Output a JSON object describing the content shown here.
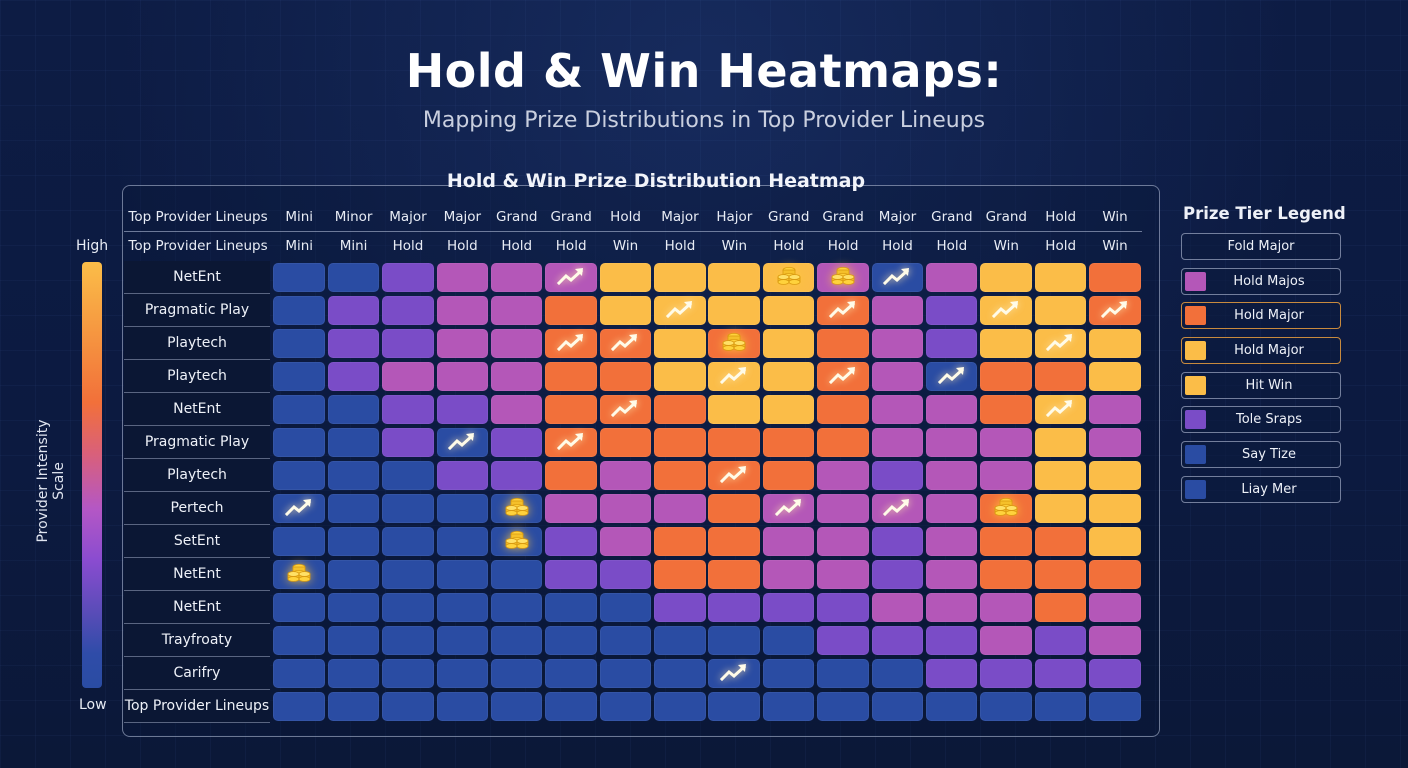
{
  "header": {
    "title": "Hold & Win Heatmaps:",
    "subtitle": "Mapping Prize Distributions in Top Provider Lineups"
  },
  "scale": {
    "label": "Provider Intensity Scale",
    "high": "High",
    "low": "Low"
  },
  "legend": {
    "title": "Prize Tier Legend",
    "items": [
      {
        "label": "Fold Major",
        "swatch": null,
        "highlight": false
      },
      {
        "label": "Hold Majos",
        "swatch": "#b457b8",
        "highlight": false
      },
      {
        "label": "Hold Major",
        "swatch": "#f2703a",
        "highlight": true
      },
      {
        "label": "Hold Major",
        "swatch": "#fbbd48",
        "highlight": true
      },
      {
        "label": "Hit Win",
        "swatch": "#fbbd48",
        "highlight": false
      },
      {
        "label": "Tole Sraps",
        "swatch": "#7a4cc7",
        "highlight": false
      },
      {
        "label": "Say Tize",
        "swatch": "#2a4ca3",
        "highlight": false
      },
      {
        "label": "Liay Mer",
        "swatch": "#2a4ca3",
        "highlight": false
      }
    ]
  },
  "palette": {
    "B": "#2a4ca3",
    "V": "#7a4cc7",
    "P": "#b457b8",
    "O": "#f2703a",
    "Y": "#fbbd48"
  },
  "chart_data": {
    "type": "heatmap",
    "title": "Hold & Win Prize Distribution Heatmap",
    "header_row_1": {
      "label": "Top Provider Lineups",
      "columns": [
        "Mini",
        "Minor",
        "Major",
        "Major",
        "Grand",
        "Grand",
        "Hold",
        "Major",
        "Hajor",
        "Grand",
        "Grand",
        "Major",
        "Grand",
        "Grand",
        "Hold",
        "Win"
      ]
    },
    "header_row_2": {
      "label": "Top Provider Lineups",
      "columns": [
        "Mini",
        "Mini",
        "Hold",
        "Hold",
        "Hold",
        "Hold",
        "Win",
        "Hold",
        "Win",
        "Hold",
        "Hold",
        "Hold",
        "Hold",
        "Win",
        "Hold",
        "Win"
      ]
    },
    "color_scale": {
      "low": "#2a4ca3",
      "high": "#fbbd48",
      "label": "Provider Intensity Scale"
    },
    "value_key": {
      "B": 1,
      "V": 2,
      "P": 3,
      "O": 4,
      "Y": 5
    },
    "rows": [
      {
        "provider": "NetEnt",
        "cells": [
          "B",
          "B",
          "V",
          "P",
          "P",
          "P",
          "Y",
          "Y",
          "Y",
          "Y",
          "P",
          "B",
          "P",
          "Y",
          "Y",
          "O"
        ],
        "icons": {
          "5": "arrow",
          "9": "coins",
          "10": "coins",
          "11": "arrow"
        }
      },
      {
        "provider": "Pragmatic Play",
        "cells": [
          "B",
          "V",
          "V",
          "P",
          "P",
          "O",
          "Y",
          "Y",
          "Y",
          "Y",
          "O",
          "P",
          "V",
          "Y",
          "Y",
          "O"
        ],
        "icons": {
          "7": "arrow",
          "10": "arrow",
          "13": "arrow",
          "15": "arrow"
        }
      },
      {
        "provider": "Playtech",
        "cells": [
          "B",
          "V",
          "V",
          "P",
          "P",
          "O",
          "O",
          "Y",
          "O",
          "Y",
          "O",
          "P",
          "V",
          "Y",
          "Y",
          "Y"
        ],
        "icons": {
          "5": "arrow",
          "6": "arrow",
          "8": "coins",
          "14": "arrow"
        }
      },
      {
        "provider": "Playtech",
        "cells": [
          "B",
          "V",
          "P",
          "P",
          "P",
          "O",
          "O",
          "Y",
          "Y",
          "Y",
          "O",
          "P",
          "B",
          "O",
          "O",
          "Y"
        ],
        "icons": {
          "8": "arrow",
          "10": "arrow",
          "12": "arrow"
        }
      },
      {
        "provider": "NetEnt",
        "cells": [
          "B",
          "B",
          "V",
          "V",
          "P",
          "O",
          "O",
          "O",
          "Y",
          "Y",
          "O",
          "P",
          "P",
          "O",
          "Y",
          "P"
        ],
        "icons": {
          "6": "arrow",
          "14": "arrow"
        }
      },
      {
        "provider": "Pragmatic Play",
        "cells": [
          "B",
          "B",
          "V",
          "B",
          "V",
          "O",
          "O",
          "O",
          "O",
          "O",
          "O",
          "P",
          "P",
          "P",
          "Y",
          "P"
        ],
        "icons": {
          "3": "arrow",
          "5": "arrow"
        }
      },
      {
        "provider": "Playtech",
        "cells": [
          "B",
          "B",
          "B",
          "V",
          "V",
          "O",
          "P",
          "O",
          "O",
          "O",
          "P",
          "V",
          "P",
          "P",
          "Y",
          "Y"
        ],
        "icons": {
          "8": "arrow"
        }
      },
      {
        "provider": "Pertech",
        "cells": [
          "B",
          "B",
          "B",
          "B",
          "B",
          "P",
          "P",
          "P",
          "O",
          "P",
          "P",
          "P",
          "P",
          "O",
          "Y",
          "Y"
        ],
        "icons": {
          "0": "arrow",
          "4": "coins",
          "9": "arrow",
          "11": "arrow",
          "13": "coins"
        }
      },
      {
        "provider": "SetEnt",
        "cells": [
          "B",
          "B",
          "B",
          "B",
          "B",
          "V",
          "P",
          "O",
          "O",
          "P",
          "P",
          "V",
          "P",
          "O",
          "O",
          "Y"
        ],
        "icons": {
          "4": "coins"
        }
      },
      {
        "provider": "NetEnt",
        "cells": [
          "B",
          "B",
          "B",
          "B",
          "B",
          "V",
          "V",
          "O",
          "O",
          "P",
          "P",
          "V",
          "P",
          "O",
          "O",
          "O"
        ],
        "icons": {
          "0": "coins"
        }
      },
      {
        "provider": "NetEnt",
        "cells": [
          "B",
          "B",
          "B",
          "B",
          "B",
          "B",
          "B",
          "V",
          "V",
          "V",
          "V",
          "P",
          "P",
          "P",
          "O",
          "P"
        ],
        "icons": {}
      },
      {
        "provider": "Trayfroaty",
        "cells": [
          "B",
          "B",
          "B",
          "B",
          "B",
          "B",
          "B",
          "B",
          "B",
          "B",
          "V",
          "V",
          "V",
          "P",
          "V",
          "P"
        ],
        "icons": {}
      },
      {
        "provider": "Carifry",
        "cells": [
          "B",
          "B",
          "B",
          "B",
          "B",
          "B",
          "B",
          "B",
          "B",
          "B",
          "B",
          "B",
          "V",
          "V",
          "V",
          "V"
        ],
        "icons": {
          "8": "arrow"
        }
      },
      {
        "provider": "Top Provider Lineups",
        "cells": [
          "B",
          "B",
          "B",
          "B",
          "B",
          "B",
          "B",
          "B",
          "B",
          "B",
          "B",
          "B",
          "B",
          "B",
          "B",
          "B"
        ],
        "icons": {}
      }
    ]
  }
}
